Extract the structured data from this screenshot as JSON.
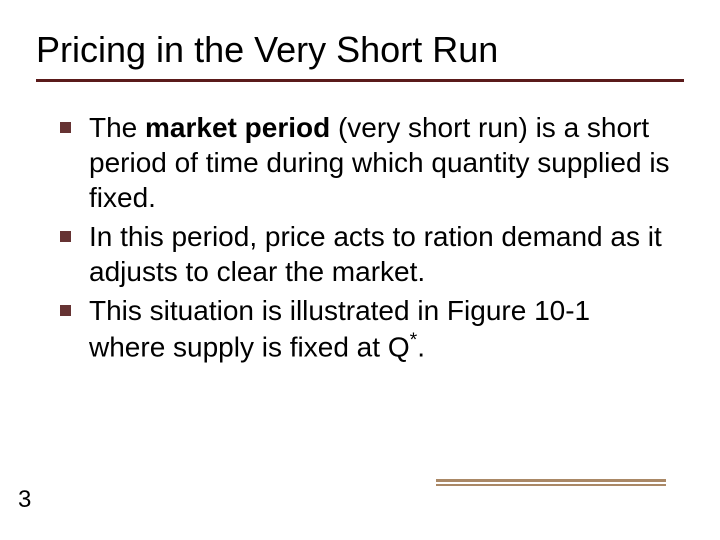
{
  "title": "Pricing in the Very Short Run",
  "bullets": [
    {
      "prefix": "The ",
      "bold": "market period",
      "rest": " (very short run) is a short period of time during which quantity supplied is fixed."
    },
    {
      "text": "In this period, price acts to ration demand as it adjusts to clear the market."
    },
    {
      "text_a": "This situation is illustrated in Figure 10-1 where supply is fixed at Q",
      "sup": "*",
      "text_b": "."
    }
  ],
  "page_number": "3",
  "colors": {
    "title_rule": "#5a1a1a",
    "bullet": "#663333",
    "accent": "#aa8866",
    "text": "#000000",
    "background": "#ffffff"
  }
}
